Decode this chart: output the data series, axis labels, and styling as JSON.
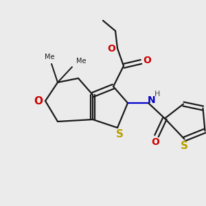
{
  "bg_color": "#ebebeb",
  "bond_color": "#1a1a1a",
  "S_color": "#b8a000",
  "N_color": "#0000cc",
  "O_color": "#cc0000",
  "line_width": 1.6,
  "figsize": [
    3.0,
    3.0
  ],
  "dpi": 100,
  "xlim": [
    0,
    10
  ],
  "ylim": [
    0,
    10
  ]
}
